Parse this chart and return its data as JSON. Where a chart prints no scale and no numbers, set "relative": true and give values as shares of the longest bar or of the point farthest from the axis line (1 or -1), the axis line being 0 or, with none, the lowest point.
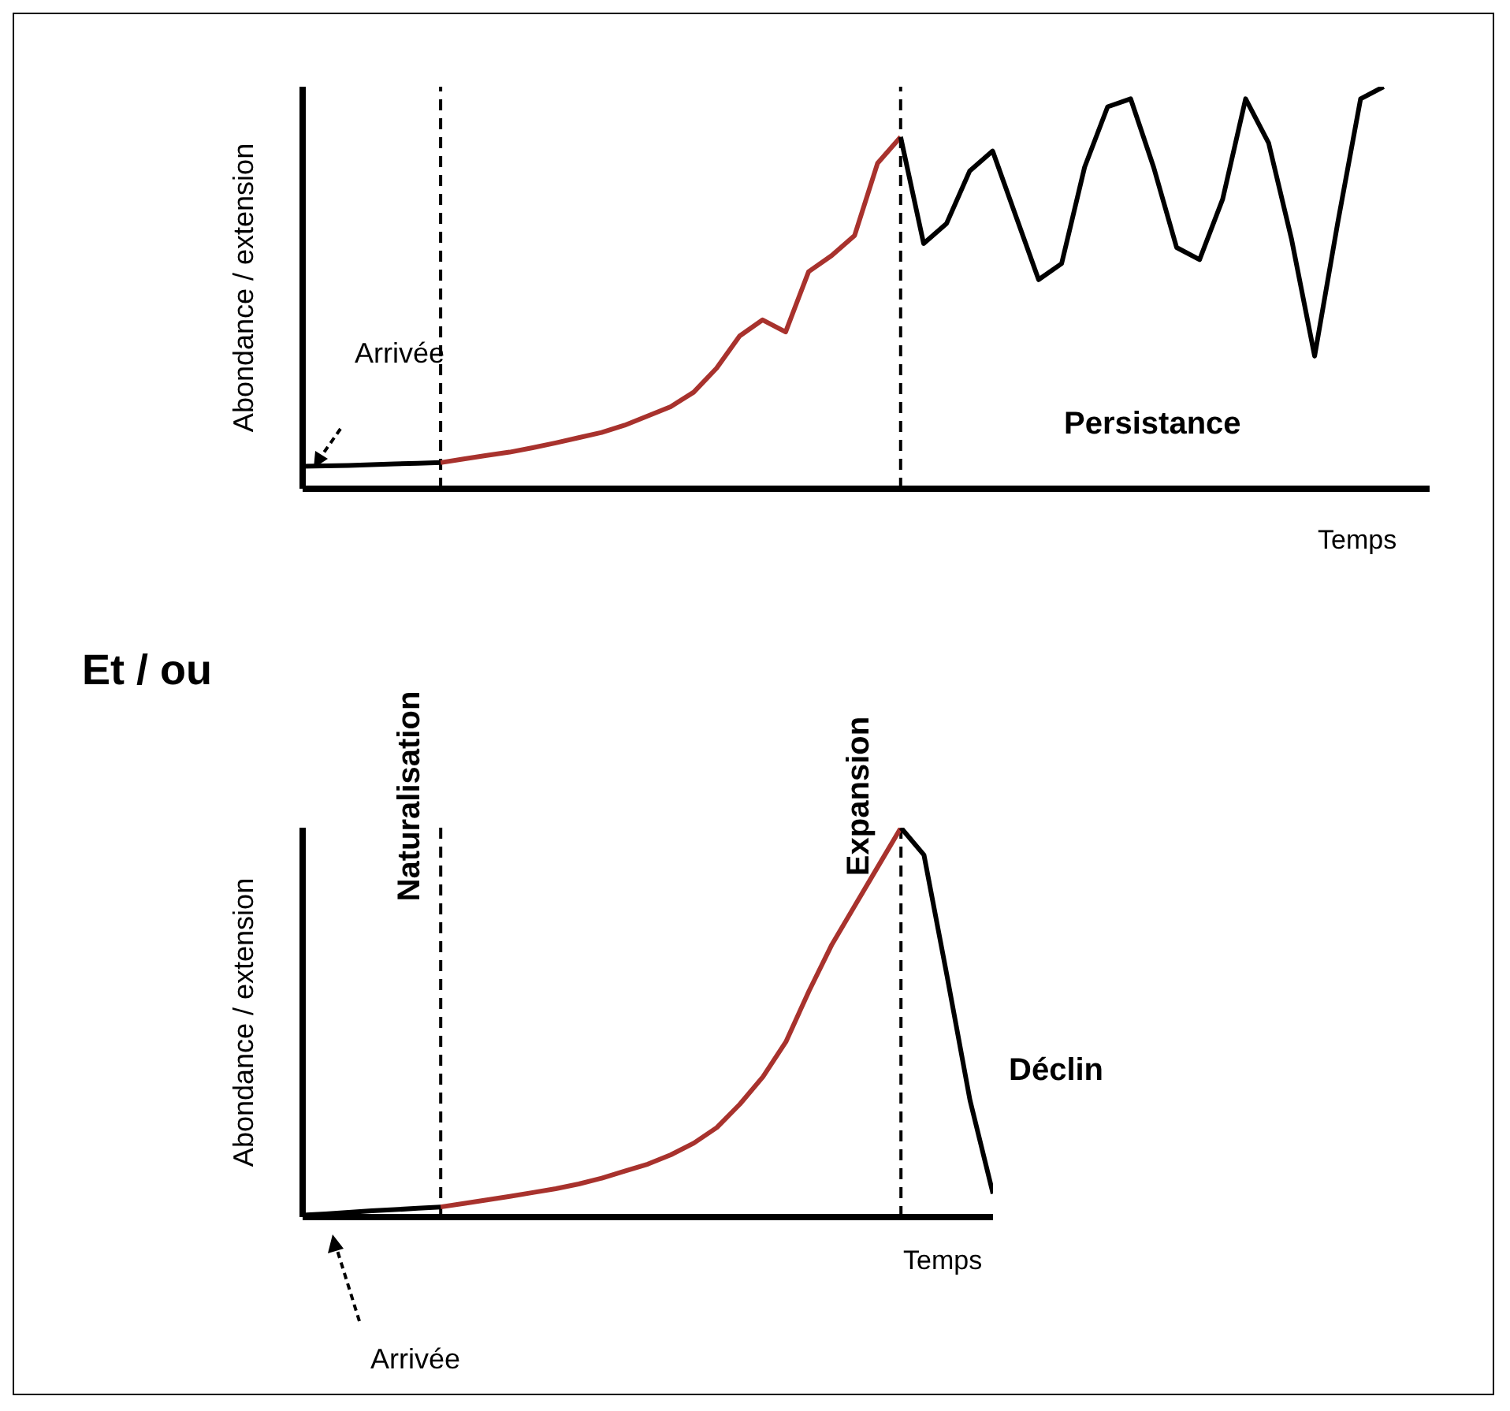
{
  "chart_data": [
    {
      "type": "line",
      "relative": true,
      "xlabel": "Temps",
      "ylabel": "Abondance / extension",
      "annotations": [
        "Arrivée",
        "Persistance",
        "Et / ou"
      ],
      "categories": [
        null,
        null,
        null,
        null,
        null,
        null,
        null,
        null,
        null,
        null,
        null,
        null,
        null,
        null,
        null,
        null,
        null,
        null,
        null,
        null,
        null,
        null,
        null,
        null,
        null,
        null,
        null,
        null,
        null,
        null,
        null,
        null,
        null,
        null,
        null,
        null,
        null,
        null,
        null,
        null,
        null,
        null,
        null,
        null,
        null,
        null,
        null,
        null,
        null,
        null
      ],
      "series": [
        {
          "color": "#000000",
          "values": [
            0.056,
            0.057,
            0.058,
            0.06,
            0.062,
            0.063,
            0.065,
            null,
            null,
            null,
            null,
            null,
            null,
            null,
            null,
            null,
            null,
            null,
            null,
            null,
            null,
            null,
            null,
            null,
            null,
            null,
            null,
            null,
            null,
            null,
            null,
            null,
            null,
            null,
            null,
            null,
            null,
            null,
            null,
            null,
            null,
            null,
            null,
            null,
            null,
            null,
            null,
            null,
            null,
            null
          ]
        },
        {
          "color": "#a8322d",
          "values": [
            null,
            null,
            null,
            null,
            null,
            null,
            0.065,
            0.074,
            0.083,
            0.091,
            0.102,
            0.114,
            0.127,
            0.14,
            0.158,
            0.181,
            0.204,
            0.24,
            0.3,
            0.38,
            0.42,
            0.39,
            0.54,
            0.58,
            0.63,
            0.81,
            0.875,
            null,
            null,
            null,
            null,
            null,
            null,
            null,
            null,
            null,
            null,
            null,
            null,
            null,
            null,
            null,
            null,
            null,
            null,
            null,
            null,
            null,
            null,
            null
          ]
        },
        {
          "color": "#000000",
          "values": [
            null,
            null,
            null,
            null,
            null,
            null,
            null,
            null,
            null,
            null,
            null,
            null,
            null,
            null,
            null,
            null,
            null,
            null,
            null,
            null,
            null,
            null,
            null,
            null,
            null,
            null,
            0.875,
            0.61,
            0.66,
            0.79,
            0.84,
            0.68,
            0.52,
            0.56,
            0.8,
            0.95,
            0.97,
            0.8,
            0.6,
            0.57,
            0.72,
            0.97,
            0.86,
            0.62,
            0.33,
            0.66,
            0.97,
            1.0,
            null,
            null
          ]
        }
      ]
    },
    {
      "type": "line",
      "relative": true,
      "xlabel": "Temps",
      "ylabel": "Abondance / extension",
      "annotations": [
        "Déclin",
        "Arrivée",
        "Naturalisation",
        "Expansion"
      ],
      "categories": [
        null,
        null,
        null,
        null,
        null,
        null,
        null,
        null,
        null,
        null,
        null,
        null,
        null,
        null,
        null,
        null,
        null,
        null,
        null,
        null,
        null,
        null,
        null,
        null,
        null,
        null,
        null,
        null,
        null,
        null,
        null
      ],
      "series": [
        {
          "color": "#000000",
          "values": [
            0.005,
            0.008,
            0.012,
            0.016,
            0.019,
            0.023,
            0.026,
            null,
            null,
            null,
            null,
            null,
            null,
            null,
            null,
            null,
            null,
            null,
            null,
            null,
            null,
            null,
            null,
            null,
            null,
            null,
            null,
            null,
            null,
            null,
            null
          ]
        },
        {
          "color": "#a8322d",
          "values": [
            null,
            null,
            null,
            null,
            null,
            null,
            0.026,
            0.035,
            0.044,
            0.053,
            0.063,
            0.073,
            0.085,
            0.1,
            0.118,
            0.136,
            0.16,
            0.19,
            0.23,
            0.29,
            0.36,
            0.45,
            0.58,
            0.7,
            0.8,
            0.9,
            1.0,
            null,
            null,
            null,
            null
          ]
        },
        {
          "color": "#000000",
          "values": [
            null,
            null,
            null,
            null,
            null,
            null,
            null,
            null,
            null,
            null,
            null,
            null,
            null,
            null,
            null,
            null,
            null,
            null,
            null,
            null,
            null,
            null,
            null,
            null,
            null,
            null,
            1.0,
            0.93,
            0.62,
            0.3,
            0.06
          ]
        }
      ]
    }
  ]
}
